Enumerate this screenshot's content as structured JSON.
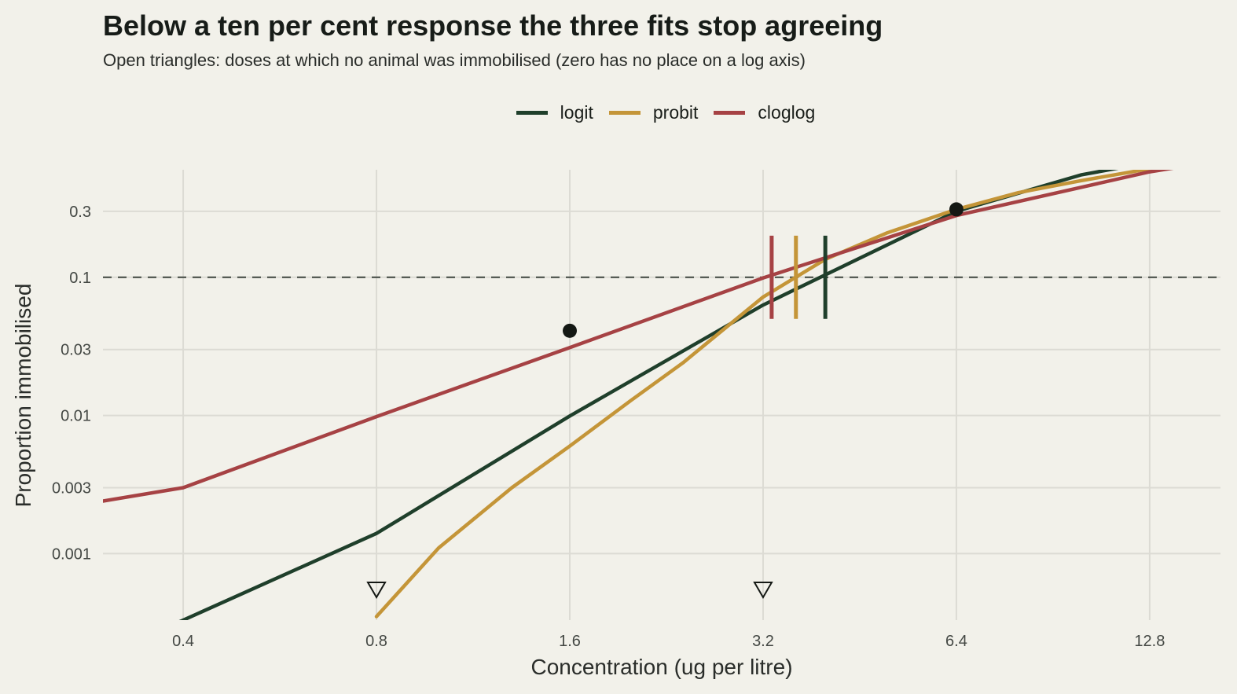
{
  "chart_data": {
    "type": "line",
    "title": "Below a ten per cent response the three fits stop agreeing",
    "subtitle": "Open triangles: doses at which no animal was immobilised (zero has no place on a log axis)",
    "xlabel": "Concentration (ug per litre)",
    "ylabel": "Proportion immobilised",
    "x_scale": "log",
    "y_scale": "log",
    "xlim": [
      0.3,
      16.5
    ],
    "ylim": [
      0.00033,
      0.6
    ],
    "x_ticks": [
      0.4,
      0.8,
      1.6,
      3.2,
      6.4,
      12.8
    ],
    "x_tick_labels": [
      "0.4",
      "0.8",
      "1.6",
      "3.2",
      "6.4",
      "12.8"
    ],
    "y_ticks": [
      0.001,
      0.003,
      0.01,
      0.03,
      0.1,
      0.3
    ],
    "y_tick_labels": [
      "0.001",
      "0.003",
      "0.01",
      "0.03",
      "0.1",
      "0.3"
    ],
    "grid": true,
    "legend_position": "top",
    "reference_line": {
      "y": 0.1,
      "style": "dashed"
    },
    "series": [
      {
        "name": "logit",
        "color": "#1f3f2b",
        "x": [
          0.3,
          0.4,
          0.8,
          1.6,
          3.2,
          6.4,
          10.0,
          12.8,
          16.5
        ],
        "y": [
          0.00018,
          0.00033,
          0.0014,
          0.0099,
          0.063,
          0.3,
          0.55,
          0.68,
          0.8
        ],
        "ec10": 4.0
      },
      {
        "name": "probit",
        "color": "#c49538",
        "x": [
          0.8,
          1.0,
          1.3,
          1.6,
          2.0,
          2.4,
          3.2,
          4.0,
          5.0,
          6.4,
          8.0,
          10.0,
          12.8,
          16.5
        ],
        "y": [
          0.00035,
          0.0011,
          0.003,
          0.006,
          0.013,
          0.024,
          0.072,
          0.135,
          0.21,
          0.31,
          0.41,
          0.5,
          0.61,
          0.72
        ],
        "ec10": 3.6
      },
      {
        "name": "cloglog",
        "color": "#a64244",
        "x": [
          0.3,
          0.4,
          0.8,
          1.6,
          3.2,
          6.4,
          12.8,
          16.5
        ],
        "y": [
          0.0024,
          0.003,
          0.0098,
          0.031,
          0.099,
          0.28,
          0.58,
          0.7
        ],
        "ec10": 3.3
      }
    ],
    "observed": [
      {
        "x": 1.6,
        "y": 0.041
      },
      {
        "x": 6.4,
        "y": 0.31
      }
    ],
    "zero_response_doses": [
      0.8,
      3.2
    ]
  }
}
